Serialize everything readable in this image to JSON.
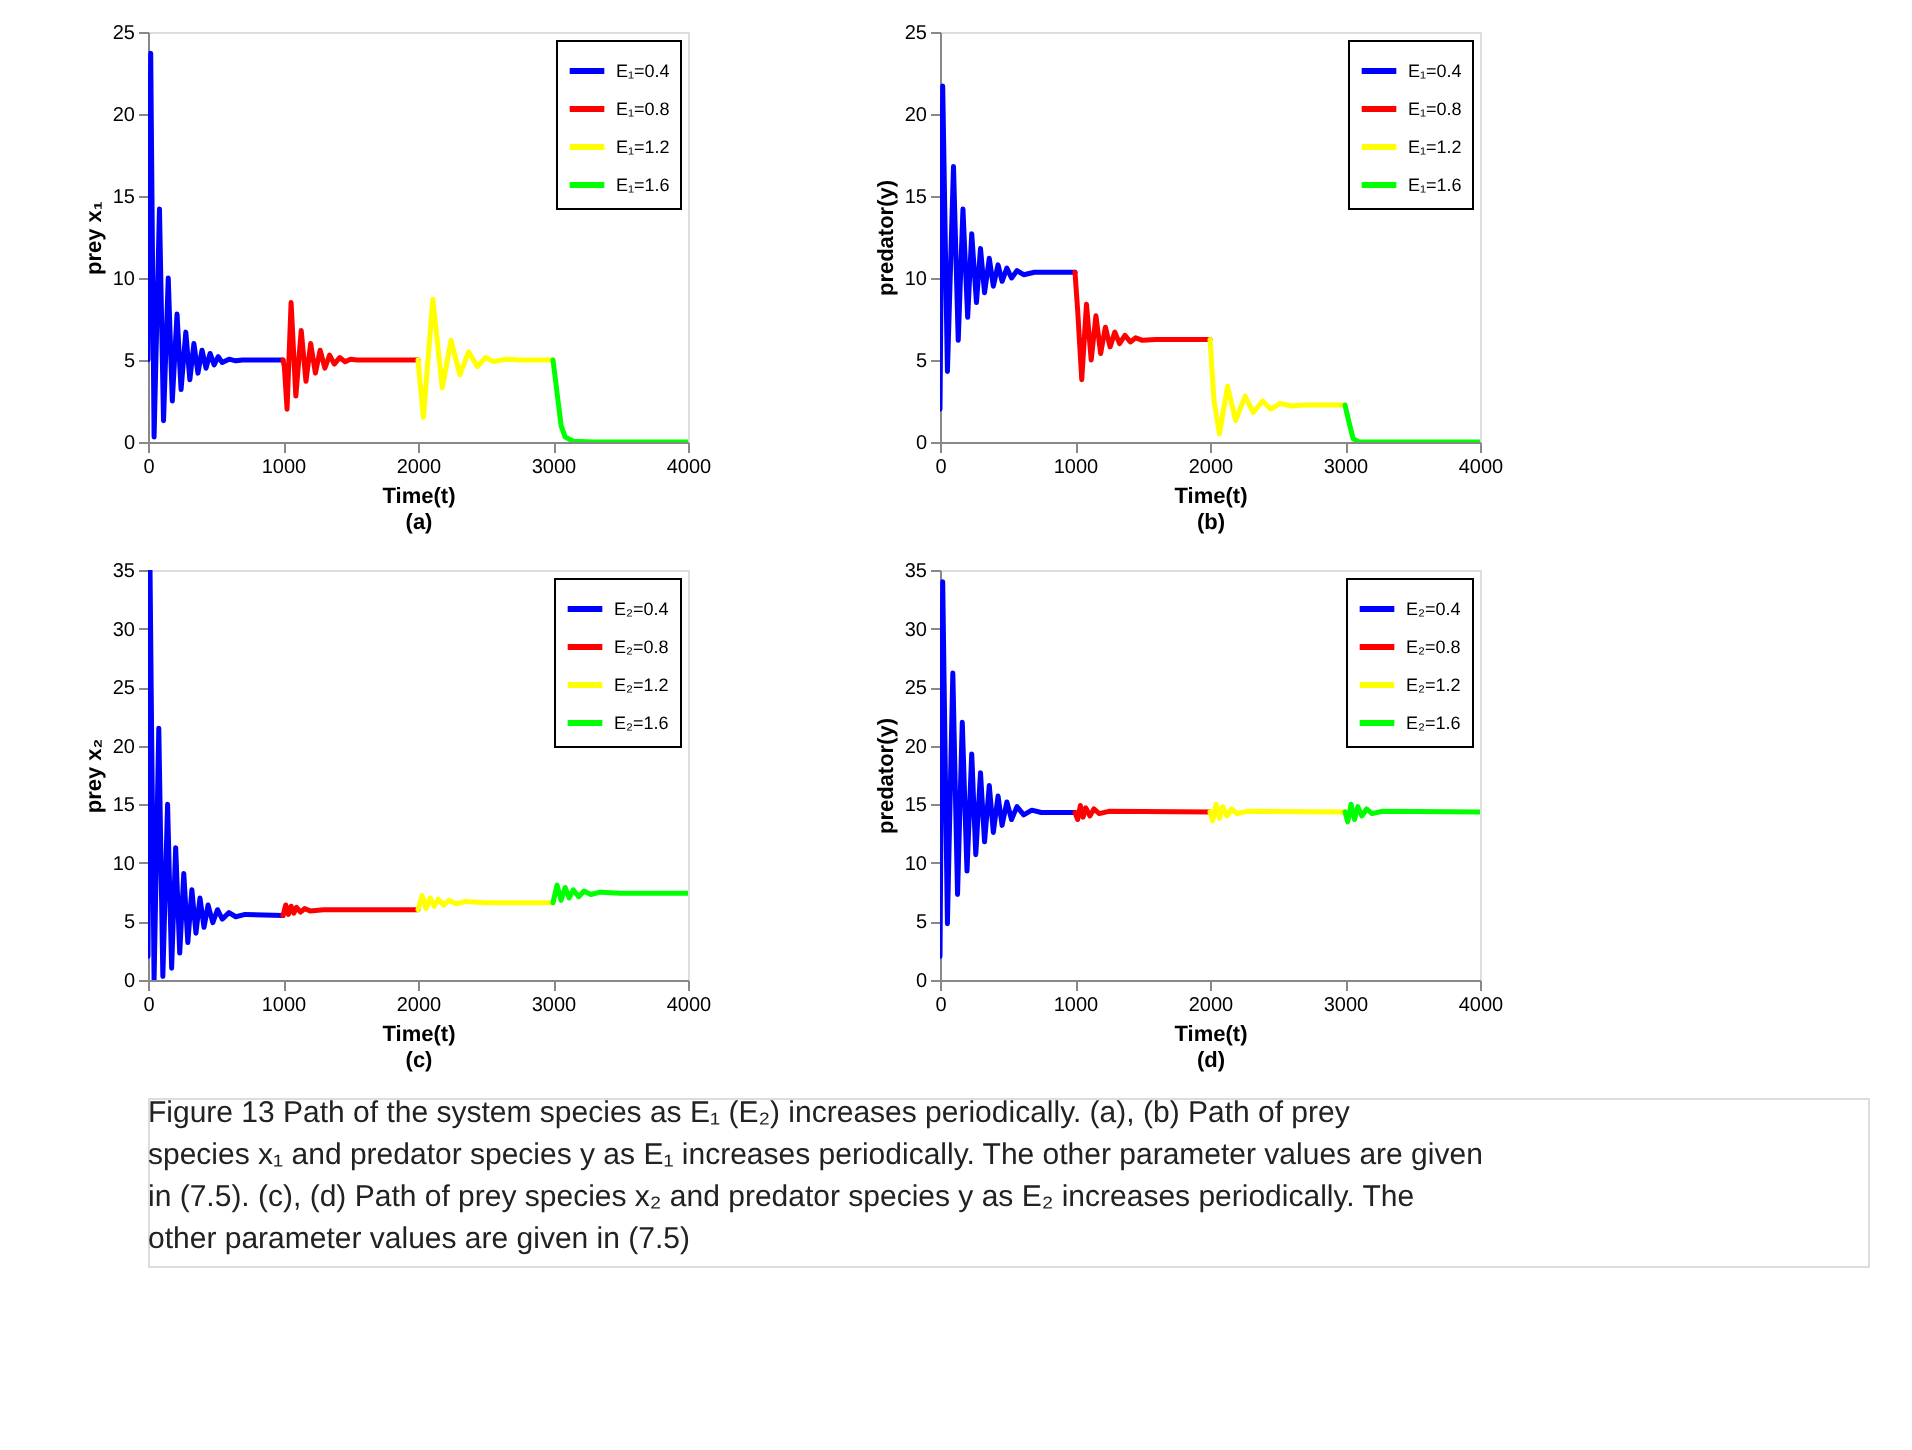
{
  "chart_data": [
    {
      "type": "line",
      "xlabel": "Time(t)",
      "ylabel": "prey x₁",
      "annotations": [
        "(a)"
      ],
      "xlim": [
        0,
        4000
      ],
      "xticks": [
        0,
        1000,
        2000,
        3000,
        4000
      ],
      "ylim": [
        0,
        25
      ],
      "yticks": [
        0,
        5,
        10,
        15,
        20,
        25
      ],
      "grid": false,
      "legend": "top right",
      "series": [
        {
          "name": "E₁=0.4",
          "color": "#0000ff",
          "x": [
            0,
            20,
            45,
            85,
            115,
            150,
            180,
            215,
            245,
            280,
            310,
            340,
            370,
            400,
            430,
            460,
            490,
            520,
            550,
            600,
            650,
            700,
            1000
          ],
          "values": [
            5,
            23.7,
            0.3,
            14.2,
            1.3,
            10,
            2.5,
            7.8,
            3.2,
            6.7,
            3.8,
            6.0,
            4.2,
            5.6,
            4.5,
            5.4,
            4.7,
            5.2,
            4.85,
            5.05,
            4.95,
            5,
            5
          ]
        },
        {
          "name": "E₁=0.8",
          "color": "#ff0000",
          "x": [
            1000,
            1010,
            1030,
            1060,
            1095,
            1135,
            1170,
            1205,
            1240,
            1275,
            1310,
            1345,
            1380,
            1420,
            1460,
            1500,
            1550,
            2000
          ],
          "values": [
            5,
            4.6,
            2.0,
            8.5,
            2.8,
            6.8,
            3.7,
            6.0,
            4.2,
            5.6,
            4.5,
            5.3,
            4.75,
            5.15,
            4.9,
            5.05,
            5,
            5
          ]
        },
        {
          "name": "E₁=1.2",
          "color": "#ffff00",
          "x": [
            2000,
            2040,
            2110,
            2180,
            2245,
            2310,
            2375,
            2440,
            2500,
            2560,
            2650,
            2750,
            3000
          ],
          "values": [
            5,
            1.5,
            8.7,
            3.3,
            6.2,
            4.1,
            5.5,
            4.6,
            5.15,
            4.9,
            5.05,
            5,
            5
          ]
        },
        {
          "name": "E₁=1.6",
          "color": "#00ff00",
          "x": [
            3000,
            3030,
            3060,
            3090,
            3150,
            3300,
            4000
          ],
          "values": [
            5,
            3,
            1,
            0.3,
            0.05,
            0,
            0
          ]
        }
      ]
    },
    {
      "type": "line",
      "xlabel": "Time(t)",
      "ylabel": "predator(y)",
      "annotations": [
        "(b)"
      ],
      "xlim": [
        0,
        4000
      ],
      "xticks": [
        0,
        1000,
        2000,
        3000,
        4000
      ],
      "ylim": [
        0,
        25
      ],
      "yticks": [
        0,
        5,
        10,
        15,
        20,
        25
      ],
      "grid": false,
      "legend": "top right",
      "series": [
        {
          "name": "E₁=0.4",
          "color": "#0000ff",
          "x": [
            0,
            20,
            55,
            100,
            135,
            170,
            205,
            235,
            270,
            300,
            330,
            365,
            395,
            430,
            460,
            495,
            530,
            570,
            620,
            700,
            1000
          ],
          "values": [
            2,
            21.7,
            4.3,
            16.8,
            6.2,
            14.2,
            7.6,
            12.7,
            8.5,
            11.8,
            9.1,
            11.2,
            9.5,
            10.8,
            9.8,
            10.6,
            10.0,
            10.45,
            10.2,
            10.35,
            10.35
          ]
        },
        {
          "name": "E₁=0.8",
          "color": "#ff0000",
          "x": [
            1000,
            1020,
            1050,
            1085,
            1120,
            1155,
            1190,
            1225,
            1260,
            1295,
            1330,
            1370,
            1410,
            1450,
            1500,
            1600,
            2000
          ],
          "values": [
            10.35,
            8,
            3.8,
            8.4,
            5.0,
            7.7,
            5.4,
            7.0,
            5.8,
            6.7,
            6.0,
            6.5,
            6.1,
            6.35,
            6.2,
            6.25,
            6.25
          ]
        },
        {
          "name": "E₁=1.2",
          "color": "#ffff00",
          "x": [
            2000,
            2030,
            2070,
            2130,
            2190,
            2260,
            2320,
            2390,
            2450,
            2520,
            2600,
            2700,
            3000
          ],
          "values": [
            6.25,
            2.5,
            0.5,
            3.4,
            1.3,
            2.8,
            1.8,
            2.5,
            2.0,
            2.35,
            2.2,
            2.25,
            2.25
          ]
        },
        {
          "name": "E₁=1.6",
          "color": "#00ff00",
          "x": [
            3000,
            3030,
            3060,
            3100,
            4000
          ],
          "values": [
            2.25,
            1.2,
            0.2,
            0.02,
            0
          ]
        }
      ]
    },
    {
      "type": "line",
      "xlabel": "Time(t)",
      "ylabel": "prey x₂",
      "annotations": [
        "(c)"
      ],
      "xlim": [
        0,
        4000
      ],
      "xticks": [
        0,
        1000,
        2000,
        3000,
        4000
      ],
      "ylim": [
        0,
        35
      ],
      "yticks": [
        0,
        5,
        10,
        15,
        20,
        25,
        30,
        35
      ],
      "grid": false,
      "legend": "top right",
      "series": [
        {
          "name": "E₂=0.4",
          "color": "#0000ff",
          "x": [
            0,
            15,
            45,
            80,
            110,
            145,
            175,
            205,
            235,
            265,
            295,
            325,
            355,
            385,
            415,
            445,
            480,
            515,
            550,
            600,
            650,
            720,
            1000
          ],
          "values": [
            2,
            35,
            0,
            21.5,
            0.3,
            15,
            1,
            11.3,
            2.3,
            9.1,
            3.2,
            7.7,
            4,
            7,
            4.5,
            6.4,
            4.9,
            6.0,
            5.2,
            5.75,
            5.4,
            5.6,
            5.5
          ]
        },
        {
          "name": "E₂=0.8",
          "color": "#ff0000",
          "x": [
            1000,
            1020,
            1040,
            1060,
            1080,
            1100,
            1130,
            1160,
            1200,
            1300,
            2000
          ],
          "values": [
            5.5,
            6.4,
            5.6,
            6.3,
            5.7,
            6.2,
            5.8,
            6.1,
            5.9,
            6.0,
            6.0
          ]
        },
        {
          "name": "E₂=1.2",
          "color": "#ffff00",
          "x": [
            2000,
            2030,
            2060,
            2090,
            2120,
            2150,
            2190,
            2230,
            2280,
            2350,
            2500,
            3000
          ],
          "values": [
            6.0,
            7.2,
            6.1,
            7.0,
            6.3,
            6.9,
            6.4,
            6.8,
            6.5,
            6.7,
            6.6,
            6.6
          ]
        },
        {
          "name": "E₂=1.6",
          "color": "#00ff00",
          "x": [
            3000,
            3030,
            3060,
            3090,
            3120,
            3150,
            3190,
            3230,
            3280,
            3350,
            3500,
            4000
          ],
          "values": [
            6.6,
            8.1,
            6.8,
            7.9,
            7.0,
            7.7,
            7.1,
            7.6,
            7.3,
            7.5,
            7.4,
            7.4
          ]
        }
      ]
    },
    {
      "type": "line",
      "xlabel": "Time(t)",
      "ylabel": "predator(y)",
      "annotations": [
        "(d)",
        "Figure 13  Path of the system species as E₁ (E₂) increases periodically. (a), (b) Path of prey species x₁ and predator species y as E₁ increases periodically. The other parameter values are given in (7.5). (c), (d) Path of prey species x₂ and predator species y as E₂ increases periodically. The other parameter values are given in (7.5)"
      ],
      "xlim": [
        0,
        4000
      ],
      "xticks": [
        0,
        1000,
        2000,
        3000,
        4000
      ],
      "ylim": [
        0,
        35
      ],
      "yticks": [
        0,
        5,
        10,
        15,
        20,
        25,
        30,
        35
      ],
      "grid": false,
      "legend": "top right",
      "series": [
        {
          "name": "E₂=0.4",
          "color": "#0000ff",
          "x": [
            0,
            20,
            55,
            95,
            130,
            165,
            200,
            235,
            265,
            300,
            330,
            365,
            395,
            430,
            460,
            495,
            530,
            570,
            620,
            680,
            750,
            1000
          ],
          "values": [
            2,
            34,
            4.8,
            26.2,
            7.3,
            22,
            9.3,
            19.3,
            10.7,
            17.7,
            11.8,
            16.6,
            12.6,
            15.7,
            13.2,
            15.2,
            13.7,
            14.8,
            14.1,
            14.5,
            14.3,
            14.3
          ]
        },
        {
          "name": "E₂=0.8",
          "color": "#ff0000",
          "x": [
            1000,
            1020,
            1040,
            1060,
            1080,
            1110,
            1140,
            1180,
            1250,
            2000
          ],
          "values": [
            14.3,
            13.7,
            14.9,
            13.9,
            14.7,
            14.0,
            14.6,
            14.2,
            14.4,
            14.35
          ]
        },
        {
          "name": "E₂=1.2",
          "color": "#ffff00",
          "x": [
            2000,
            2020,
            2045,
            2070,
            2095,
            2125,
            2160,
            2200,
            2280,
            3000
          ],
          "values": [
            14.35,
            13.6,
            15,
            13.8,
            14.8,
            14.0,
            14.6,
            14.2,
            14.4,
            14.35
          ]
        },
        {
          "name": "E₂=1.6",
          "color": "#00ff00",
          "x": [
            3000,
            3020,
            3045,
            3070,
            3095,
            3125,
            3160,
            3200,
            3280,
            4000
          ],
          "values": [
            14.35,
            13.5,
            15.0,
            13.7,
            14.8,
            14.0,
            14.6,
            14.2,
            14.4,
            14.35
          ]
        }
      ]
    }
  ]
}
